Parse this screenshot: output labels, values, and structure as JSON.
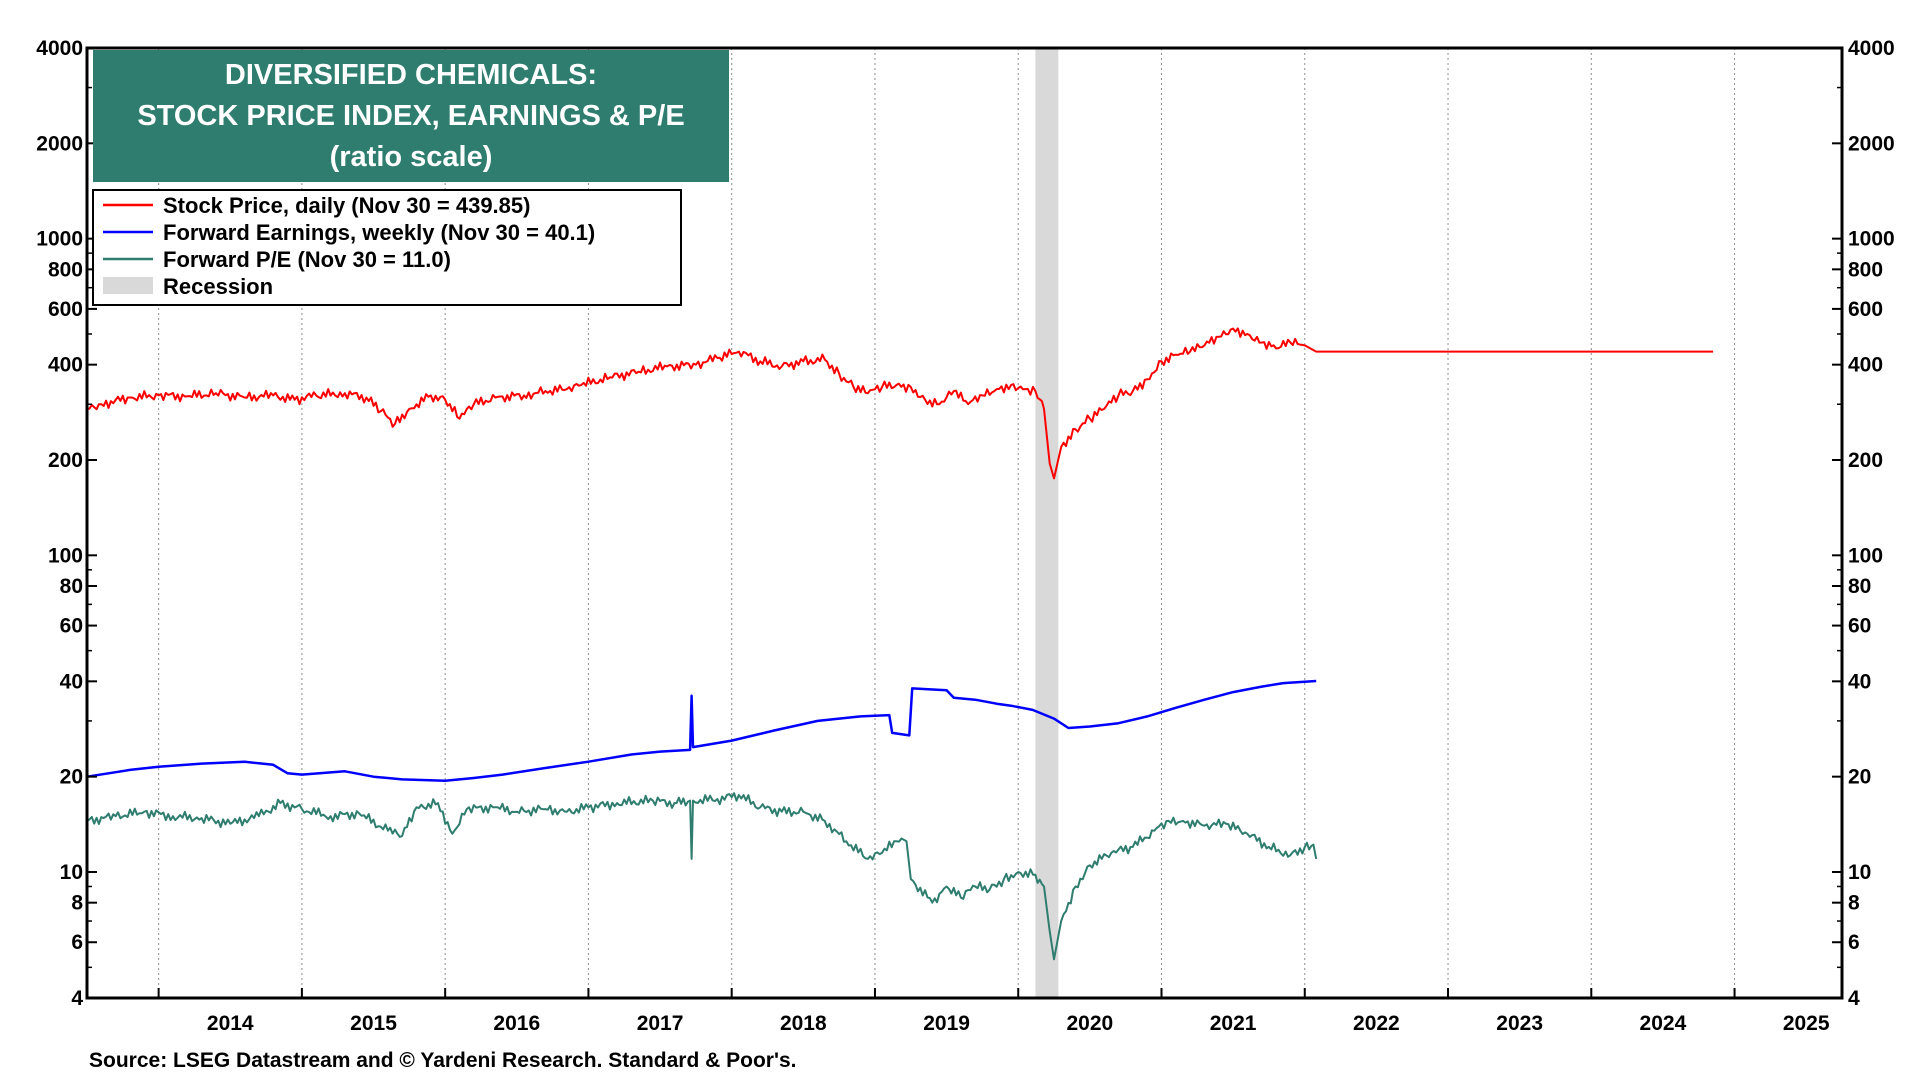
{
  "chart_data": {
    "type": "line",
    "title": [
      "DIVERSIFIED CHEMICALS:",
      "STOCK PRICE INDEX, EARNINGS & P/E",
      "(ratio scale)"
    ],
    "scale": "log",
    "ylim": [
      4,
      4000
    ],
    "xlim": [
      2013.5,
      2025.75
    ],
    "y_ticks": [
      {
        "value": 4000,
        "label": "4000"
      },
      {
        "value": 2000,
        "label": "2000"
      },
      {
        "value": 1000,
        "label": "1000"
      },
      {
        "value": 800,
        "label": "800"
      },
      {
        "value": 600,
        "label": "600"
      },
      {
        "value": 400,
        "label": "400"
      },
      {
        "value": 200,
        "label": "200"
      },
      {
        "value": 100,
        "label": "100"
      },
      {
        "value": 80,
        "label": "80"
      },
      {
        "value": 60,
        "label": "60"
      },
      {
        "value": 40,
        "label": "40"
      },
      {
        "value": 20,
        "label": "20"
      },
      {
        "value": 10,
        "label": "10"
      },
      {
        "value": 8,
        "label": "8"
      },
      {
        "value": 6,
        "label": "6"
      },
      {
        "value": 4,
        "label": "4"
      }
    ],
    "x_ticks": [
      {
        "value": 2014,
        "label": "2014"
      },
      {
        "value": 2015,
        "label": "2015"
      },
      {
        "value": 2016,
        "label": "2016"
      },
      {
        "value": 2017,
        "label": "2017"
      },
      {
        "value": 2018,
        "label": "2018"
      },
      {
        "value": 2019,
        "label": "2019"
      },
      {
        "value": 2020,
        "label": "2020"
      },
      {
        "value": 2021,
        "label": "2021"
      },
      {
        "value": 2022,
        "label": "2022"
      },
      {
        "value": 2023,
        "label": "2023"
      },
      {
        "value": 2024,
        "label": "2024"
      },
      {
        "value": 2025,
        "label": "2025"
      }
    ],
    "recession": {
      "label": "Recession",
      "start": 2020.12,
      "end": 2020.28,
      "color": "#d9d9d9"
    },
    "grid": "vertical dotted",
    "legend_position": "top-left",
    "series": [
      {
        "name": "Stock Price, daily (Nov 30 = 439.85)",
        "color": "#ff0000",
        "points": [
          [
            2013.5,
            290
          ],
          [
            2013.6,
            300
          ],
          [
            2013.8,
            315
          ],
          [
            2014.0,
            320
          ],
          [
            2014.2,
            318
          ],
          [
            2014.4,
            325
          ],
          [
            2014.6,
            315
          ],
          [
            2014.8,
            320
          ],
          [
            2014.95,
            310
          ],
          [
            2015.1,
            320
          ],
          [
            2015.3,
            325
          ],
          [
            2015.45,
            315
          ],
          [
            2015.55,
            285
          ],
          [
            2015.65,
            260
          ],
          [
            2015.75,
            290
          ],
          [
            2015.9,
            320
          ],
          [
            2016.0,
            310
          ],
          [
            2016.1,
            270
          ],
          [
            2016.2,
            300
          ],
          [
            2016.35,
            315
          ],
          [
            2016.55,
            320
          ],
          [
            2016.7,
            330
          ],
          [
            2016.85,
            335
          ],
          [
            2016.95,
            345
          ],
          [
            2017.15,
            365
          ],
          [
            2017.35,
            380
          ],
          [
            2017.55,
            395
          ],
          [
            2017.75,
            400
          ],
          [
            2017.9,
            420
          ],
          [
            2018.05,
            440
          ],
          [
            2018.2,
            410
          ],
          [
            2018.35,
            395
          ],
          [
            2018.5,
            410
          ],
          [
            2018.65,
            415
          ],
          [
            2018.75,
            375
          ],
          [
            2018.85,
            340
          ],
          [
            2018.95,
            325
          ],
          [
            2019.05,
            340
          ],
          [
            2019.15,
            345
          ],
          [
            2019.25,
            340
          ],
          [
            2019.35,
            310
          ],
          [
            2019.45,
            300
          ],
          [
            2019.55,
            330
          ],
          [
            2019.65,
            300
          ],
          [
            2019.75,
            320
          ],
          [
            2019.85,
            335
          ],
          [
            2019.95,
            345
          ],
          [
            2020.05,
            335
          ],
          [
            2020.12,
            330
          ],
          [
            2020.18,
            290
          ],
          [
            2020.22,
            195
          ],
          [
            2020.25,
            175
          ],
          [
            2020.3,
            220
          ],
          [
            2020.4,
            250
          ],
          [
            2020.5,
            270
          ],
          [
            2020.6,
            290
          ],
          [
            2020.7,
            320
          ],
          [
            2020.8,
            330
          ],
          [
            2020.9,
            360
          ],
          [
            2021.0,
            410
          ],
          [
            2021.1,
            430
          ],
          [
            2021.2,
            440
          ],
          [
            2021.3,
            460
          ],
          [
            2021.4,
            490
          ],
          [
            2021.5,
            520
          ],
          [
            2021.6,
            500
          ],
          [
            2021.7,
            470
          ],
          [
            2021.8,
            450
          ],
          [
            2021.9,
            470
          ],
          [
            2022.0,
            460
          ],
          [
            2022.08,
            440
          ],
          [
            2024.85,
            440
          ]
        ]
      },
      {
        "name": "Forward Earnings, weekly (Nov 30 = 40.1)",
        "color": "#0000ff",
        "points": [
          [
            2013.5,
            20.0
          ],
          [
            2013.8,
            21.0
          ],
          [
            2014.0,
            21.5
          ],
          [
            2014.3,
            22.0
          ],
          [
            2014.6,
            22.3
          ],
          [
            2014.8,
            21.8
          ],
          [
            2014.9,
            20.5
          ],
          [
            2015.0,
            20.3
          ],
          [
            2015.3,
            20.8
          ],
          [
            2015.5,
            20.0
          ],
          [
            2015.7,
            19.6
          ],
          [
            2016.0,
            19.4
          ],
          [
            2016.2,
            19.8
          ],
          [
            2016.4,
            20.3
          ],
          [
            2016.7,
            21.3
          ],
          [
            2017.0,
            22.3
          ],
          [
            2017.3,
            23.5
          ],
          [
            2017.5,
            24.0
          ],
          [
            2017.71,
            24.3
          ],
          [
            2017.72,
            36.0
          ],
          [
            2017.73,
            24.8
          ],
          [
            2018.0,
            26.0
          ],
          [
            2018.3,
            28.0
          ],
          [
            2018.6,
            30.0
          ],
          [
            2018.9,
            31.0
          ],
          [
            2019.1,
            31.3
          ],
          [
            2019.12,
            27.5
          ],
          [
            2019.24,
            27.0
          ],
          [
            2019.26,
            38.0
          ],
          [
            2019.5,
            37.5
          ],
          [
            2019.55,
            35.5
          ],
          [
            2019.7,
            35.0
          ],
          [
            2019.85,
            34.0
          ],
          [
            2019.95,
            33.5
          ],
          [
            2020.1,
            32.5
          ],
          [
            2020.25,
            30.5
          ],
          [
            2020.35,
            28.5
          ],
          [
            2020.5,
            28.8
          ],
          [
            2020.7,
            29.5
          ],
          [
            2020.9,
            31.0
          ],
          [
            2021.1,
            33.0
          ],
          [
            2021.3,
            35.0
          ],
          [
            2021.5,
            37.0
          ],
          [
            2021.7,
            38.5
          ],
          [
            2021.85,
            39.5
          ],
          [
            2022.08,
            40.1
          ]
        ]
      },
      {
        "name": "Forward P/E (Nov 30 = 11.0)",
        "color": "#2e7d6f",
        "points": [
          [
            2013.5,
            14.5
          ],
          [
            2013.7,
            15.0
          ],
          [
            2013.9,
            15.5
          ],
          [
            2014.1,
            15.0
          ],
          [
            2014.3,
            14.8
          ],
          [
            2014.5,
            14.2
          ],
          [
            2014.7,
            15.0
          ],
          [
            2014.85,
            16.5
          ],
          [
            2015.0,
            15.8
          ],
          [
            2015.2,
            15.0
          ],
          [
            2015.4,
            15.3
          ],
          [
            2015.6,
            13.5
          ],
          [
            2015.7,
            13.0
          ],
          [
            2015.8,
            16.0
          ],
          [
            2015.95,
            16.5
          ],
          [
            2016.05,
            13.2
          ],
          [
            2016.15,
            15.8
          ],
          [
            2016.35,
            16.0
          ],
          [
            2016.5,
            15.5
          ],
          [
            2016.7,
            15.8
          ],
          [
            2016.85,
            15.5
          ],
          [
            2017.0,
            16.0
          ],
          [
            2017.2,
            16.5
          ],
          [
            2017.45,
            16.8
          ],
          [
            2017.6,
            16.5
          ],
          [
            2017.71,
            16.8
          ],
          [
            2017.72,
            11.0
          ],
          [
            2017.73,
            16.8
          ],
          [
            2017.9,
            17.0
          ],
          [
            2018.05,
            17.5
          ],
          [
            2018.2,
            16.0
          ],
          [
            2018.35,
            15.5
          ],
          [
            2018.5,
            15.5
          ],
          [
            2018.65,
            14.5
          ],
          [
            2018.8,
            12.5
          ],
          [
            2018.95,
            11.0
          ],
          [
            2019.05,
            11.5
          ],
          [
            2019.15,
            12.5
          ],
          [
            2019.22,
            12.5
          ],
          [
            2019.25,
            9.5
          ],
          [
            2019.4,
            8.0
          ],
          [
            2019.5,
            9.0
          ],
          [
            2019.6,
            8.3
          ],
          [
            2019.7,
            9.0
          ],
          [
            2019.8,
            8.8
          ],
          [
            2019.9,
            9.5
          ],
          [
            2020.0,
            10.0
          ],
          [
            2020.12,
            9.8
          ],
          [
            2020.18,
            9.0
          ],
          [
            2020.22,
            6.5
          ],
          [
            2020.25,
            5.3
          ],
          [
            2020.3,
            7.0
          ],
          [
            2020.4,
            9.0
          ],
          [
            2020.5,
            10.5
          ],
          [
            2020.65,
            11.5
          ],
          [
            2020.8,
            12.0
          ],
          [
            2020.95,
            13.5
          ],
          [
            2021.05,
            14.5
          ],
          [
            2021.15,
            14.5
          ],
          [
            2021.3,
            14.0
          ],
          [
            2021.45,
            14.2
          ],
          [
            2021.6,
            13.2
          ],
          [
            2021.75,
            12.0
          ],
          [
            2021.9,
            11.3
          ],
          [
            2022.0,
            12.0
          ],
          [
            2022.06,
            12.2
          ],
          [
            2022.08,
            11.0
          ]
        ]
      }
    ],
    "source": "Source: LSEG Datastream and © Yardeni Research. Standard & Poor's."
  }
}
